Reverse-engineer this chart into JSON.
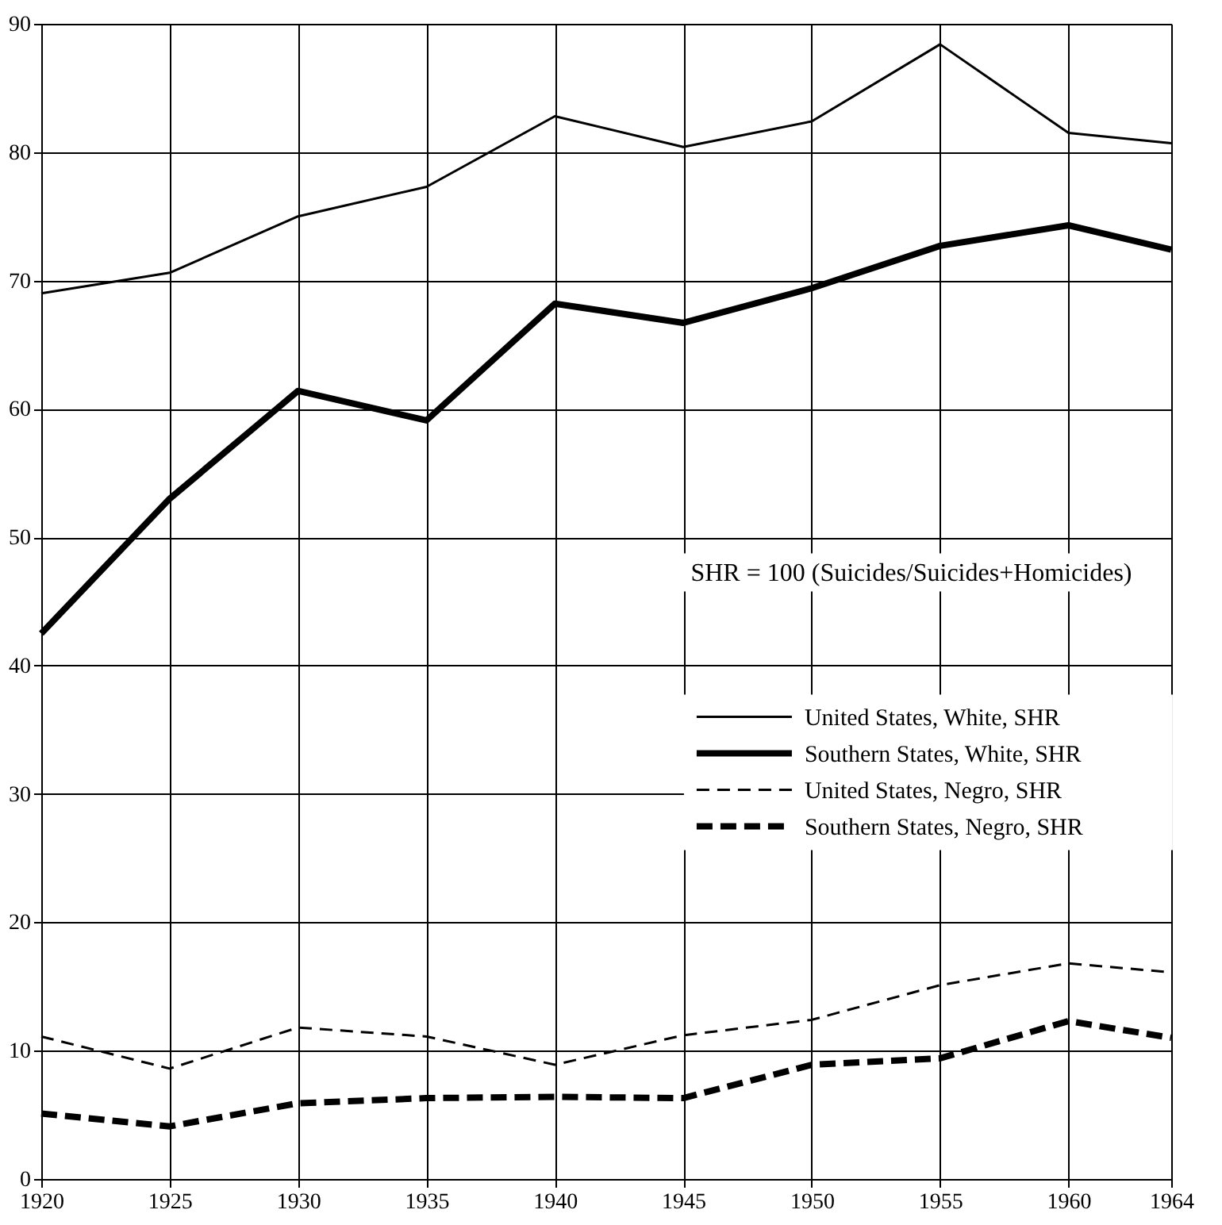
{
  "chart_data": {
    "type": "line",
    "x": [
      1920,
      1925,
      1930,
      1935,
      1940,
      1945,
      1950,
      1955,
      1960,
      1964
    ],
    "xlim": [
      1920,
      1964
    ],
    "xticks": [
      1920,
      1925,
      1930,
      1935,
      1940,
      1945,
      1950,
      1955,
      1960,
      1964
    ],
    "ylim": [
      0,
      90
    ],
    "yticks": [
      0,
      10,
      20,
      30,
      40,
      50,
      60,
      70,
      80,
      90
    ],
    "grid": true,
    "legend": "right",
    "marker": "none",
    "annotations": [
      "SHR = 100 (Suicides/Suicides+Homicides)"
    ],
    "series": [
      {
        "name": "United States, White, SHR",
        "color": "#000000",
        "line_style": "solid",
        "values": [
          69,
          70.6,
          75,
          77.3,
          82.8,
          80.4,
          82.4,
          88.4,
          81.5,
          80.7
        ]
      },
      {
        "name": "Southern States, White, SHR",
        "color": "#000000",
        "line_style": "solid",
        "values": [
          42.5,
          53,
          61.4,
          59.1,
          68.2,
          66.7,
          69.4,
          72.7,
          74.3,
          72.4
        ]
      },
      {
        "name": "United States, Negro, SHR",
        "color": "#000000",
        "line_style": "dashed",
        "values": [
          11.1,
          8.6,
          11.8,
          11.1,
          8.9,
          11.2,
          12.4,
          15.1,
          16.8,
          16.1
        ]
      },
      {
        "name": "Southern States, Negro, SHR",
        "color": "#000000",
        "line_style": "dashed",
        "values": [
          5.1,
          4.1,
          5.9,
          6.3,
          6.4,
          6.3,
          8.9,
          9.4,
          12.3,
          11
        ]
      }
    ]
  }
}
